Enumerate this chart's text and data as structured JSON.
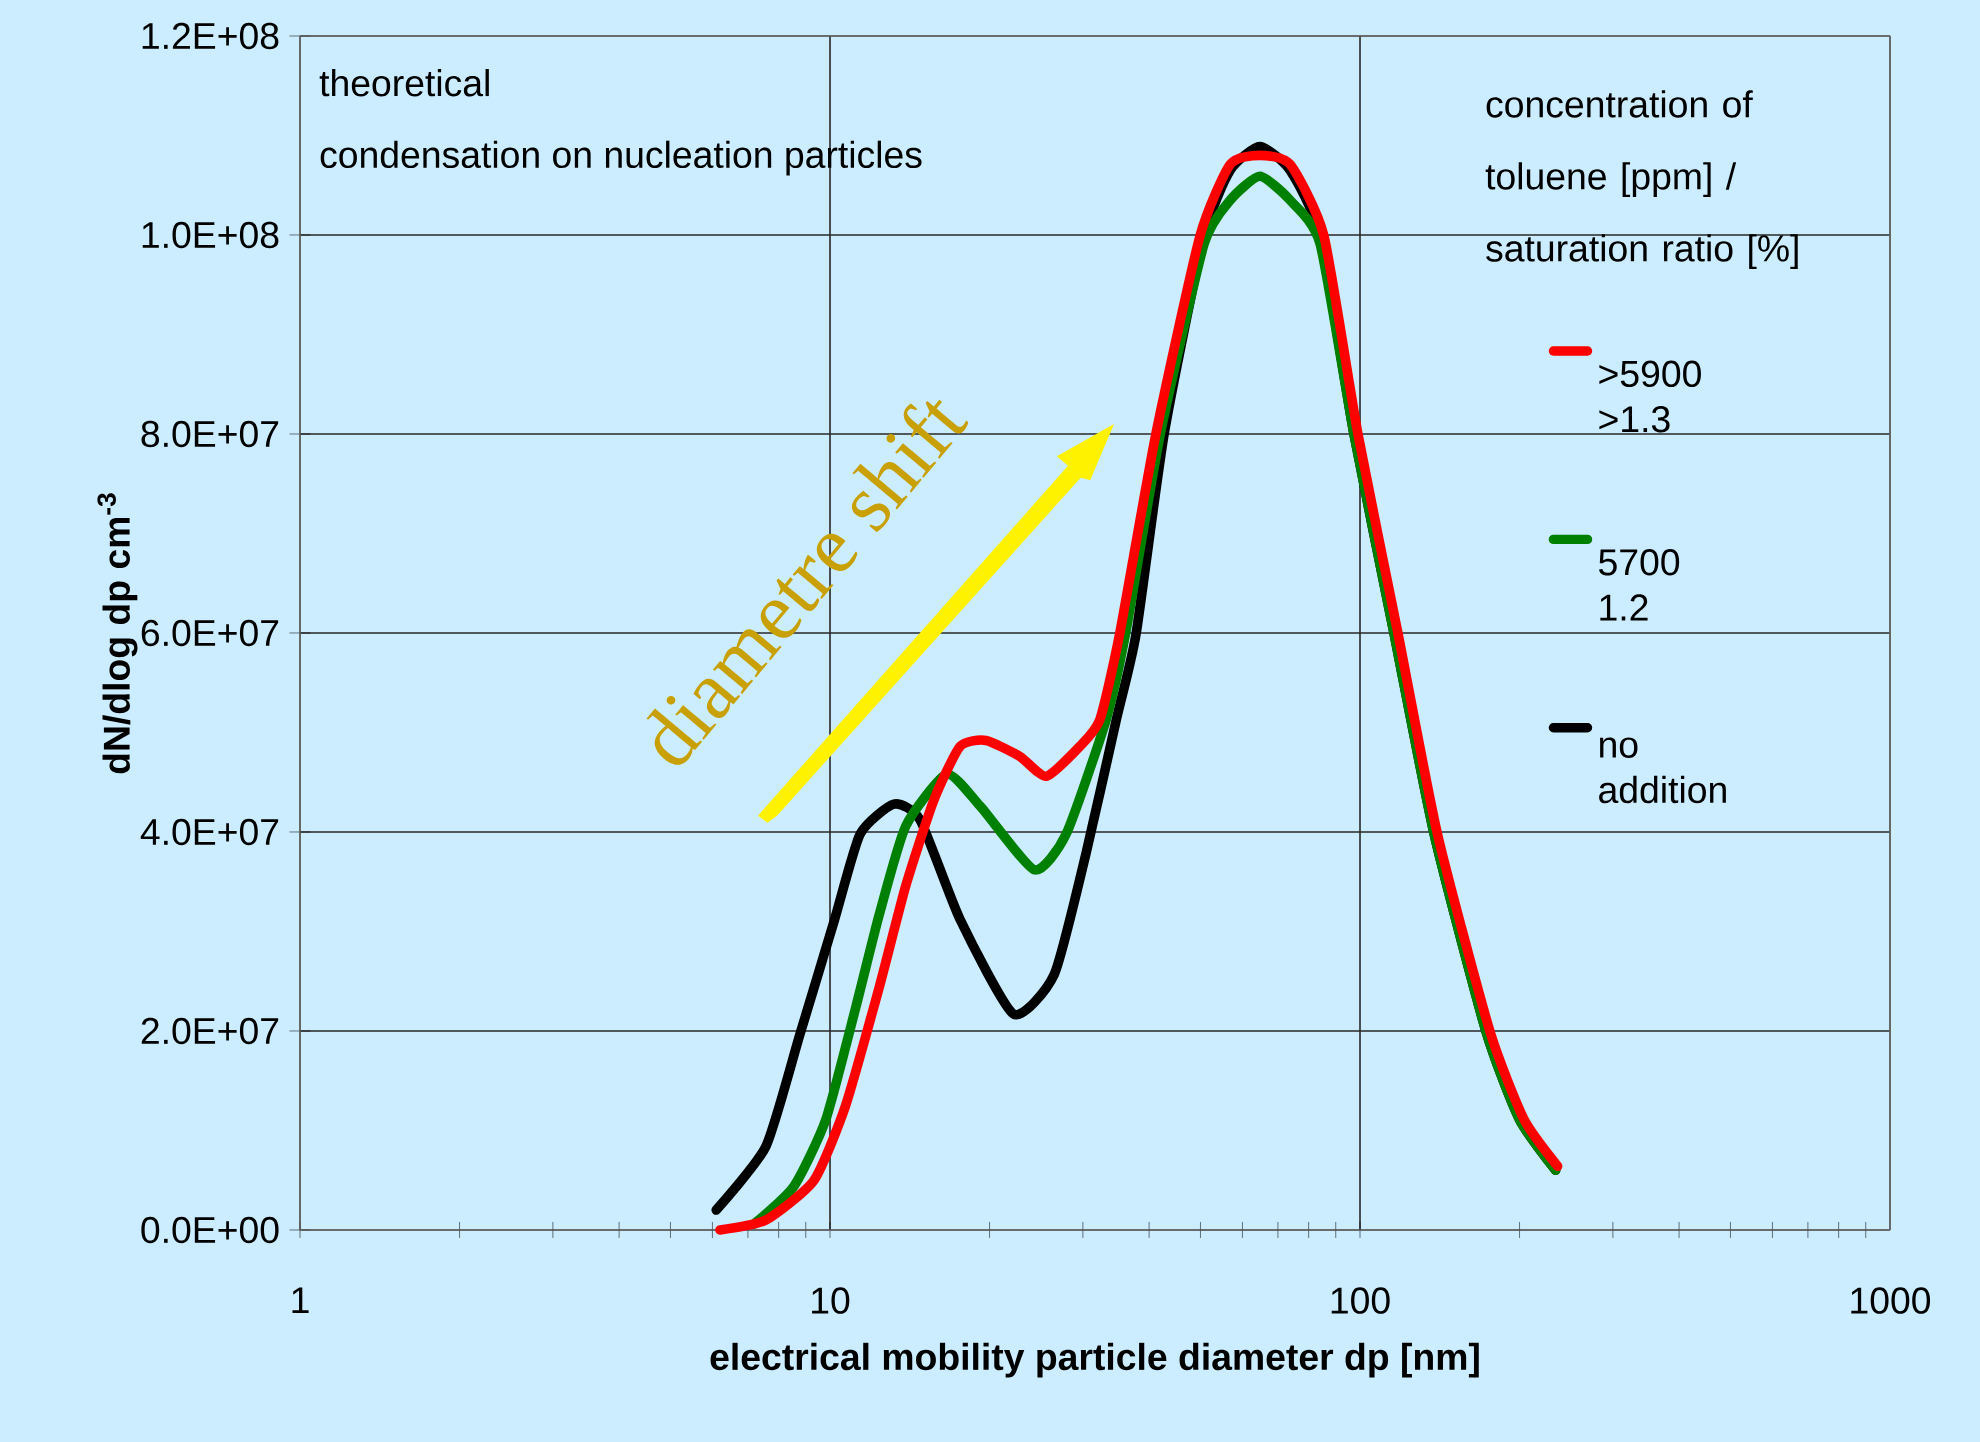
{
  "chart_data": {
    "type": "line",
    "xlabel": "electrical mobility particle diameter dp [nm]",
    "ylabel": "**dN/dlog dp cm$^{-3}$**",
    "legend_title": "concentration of toluene [ppm] / saturation ratio [%]",
    "annotations": [
      "theoretical",
      "condensation on nucleation particles",
      "diametre shift"
    ],
    "log": "x",
    "grid": true,
    "legend": "right",
    "marker": "none",
    "line_style": "solid",
    "xlim": [
      1,
      1000
    ],
    "xticks": [
      1,
      10,
      100,
      1000
    ],
    "ylim": [
      0,
      120000000
    ],
    "yticks": [
      {
        "value": 0,
        "label": "0.0E+00"
      },
      {
        "value": 20000000,
        "label": "2.0E+07"
      },
      {
        "value": 40000000,
        "label": "4.0E+07"
      },
      {
        "value": 60000000,
        "label": "6.0E+07"
      },
      {
        "value": 80000000,
        "label": "8.0E+07"
      },
      {
        "value": 100000000,
        "label": "1.0E+08"
      },
      {
        "value": 120000000,
        "label": "1.2E+08"
      }
    ],
    "series": [
      {
        "name": ">5900 >1.3",
        "color": "#ff0000",
        "x": [
          6.2,
          7.57,
          9.33,
          10.7,
          12.4,
          13.9,
          15.7,
          17.6,
          19.7,
          22.8,
          25.6,
          29.6,
          32.3,
          35.2,
          41.2,
          49.9,
          56.9,
          64.7,
          73.8,
          85.5,
          99.1,
          118,
          140,
          176,
          204,
          236
        ],
        "values": [
          0,
          1000000.0,
          5000000.0,
          12500000.0,
          24500000.0,
          34600000.0,
          43200000.0,
          48600000.0,
          49200000.0,
          47600000.0,
          45600000.0,
          48600000.0,
          51300000.0,
          59900000.0,
          80000000.0,
          99900000.0,
          107100000.0,
          108000000.0,
          107100000.0,
          99900000.0,
          80000000.0,
          59900000.0,
          39800000.0,
          19900000.0,
          11100000.0,
          6400000.0
        ]
      },
      {
        "name": "5700 1.2",
        "color": "#008000",
        "x": [
          7.19,
          8.55,
          9.82,
          11.2,
          12.4,
          13.9,
          16.6,
          19.2,
          24.3,
          27.9,
          33.2,
          36.1,
          42.0,
          50.8,
          56.9,
          64.7,
          73.8,
          84.1,
          97.4,
          116,
          138,
          173,
          200,
          234
        ],
        "values": [
          600000.0,
          4400000.0,
          11100000.0,
          22500000.0,
          31800000.0,
          40600000.0,
          45800000.0,
          42600000.0,
          36200000.0,
          39800000.0,
          51300000.0,
          59900000.0,
          80000000.0,
          99100000.0,
          103500000.0,
          105900000.0,
          103500000.0,
          99100000.0,
          80000000.0,
          59900000.0,
          39800000.0,
          19900000.0,
          11100000.0,
          6000000.0
        ]
      },
      {
        "name": "no addition",
        "color": "#000000",
        "x": [
          6.1,
          7.57,
          8.78,
          10.2,
          11.4,
          13.2,
          14.8,
          17.6,
          22.2,
          26.5,
          30.4,
          34.7,
          37.8,
          42.7,
          50.8,
          56.9,
          64.7,
          73.8,
          84.1,
          97.4,
          116,
          138,
          173,
          200,
          234
        ],
        "values": [
          2000000.0,
          8400000.0,
          19700000.0,
          31200000.0,
          39800000.0,
          42800000.0,
          41200000.0,
          31200000.0,
          21700000.0,
          25700000.0,
          37800000.0,
          51300000.0,
          59900000.0,
          80000000.0,
          99900000.0,
          106500000.0,
          108900000.0,
          106500000.0,
          99900000.0,
          80000000.0,
          59900000.0,
          39800000.0,
          19900000.0,
          11100000.0,
          6000000.0
        ]
      }
    ]
  }
}
